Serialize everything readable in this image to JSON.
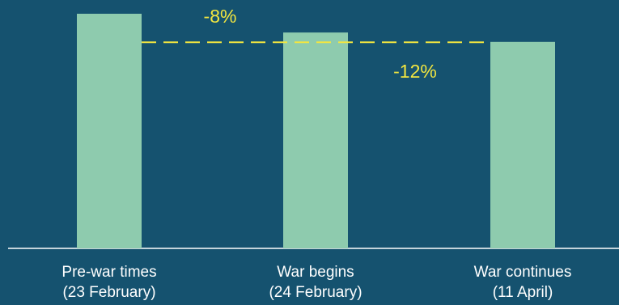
{
  "chart_data": {
    "type": "bar",
    "categories": [
      {
        "line1": "Pre-war times",
        "line2": "(23 February)"
      },
      {
        "line1": "War begins",
        "line2": "(24 February)"
      },
      {
        "line1": "War continues",
        "line2": "(11 April)"
      }
    ],
    "values": [
      100,
      92,
      88
    ],
    "ylim": [
      0,
      100
    ],
    "grid": false,
    "reference_line": {
      "value": 92,
      "style": "dashed"
    },
    "annotations": [
      {
        "text": "-8%",
        "category_index": 1
      },
      {
        "text": "-12%",
        "category_index": 2
      }
    ],
    "colors": {
      "background": "#15526f",
      "bar": "#8ecbae",
      "annotation": "#f2e640",
      "axis": "#ffffff",
      "text": "#ffffff"
    }
  }
}
